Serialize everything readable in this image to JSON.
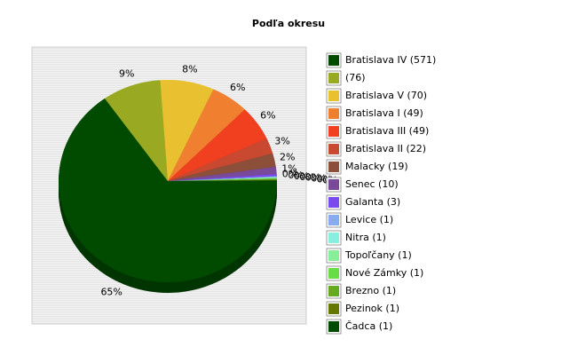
{
  "chart_data": {
    "type": "pie",
    "title": "Podľa okresu",
    "categories": [
      "Bratislava IV (571)",
      " (76)",
      "Bratislava V (70)",
      "Bratislava I (49)",
      "Bratislava III (49)",
      "Bratislava II (22)",
      "Malacky (19)",
      "Senec (10)",
      "Galanta (3)",
      "Levice (1)",
      "Nitra (1)",
      "Topoľčany (1)",
      "Nové Zámky (1)",
      "Brezno (1)",
      "Pezinok (1)",
      "Čadca (1)"
    ],
    "values": [
      65.18,
      8.68,
      7.99,
      5.59,
      5.59,
      2.51,
      2.17,
      1.14,
      0.34,
      0.11,
      0.11,
      0.11,
      0.11,
      0.11,
      0.11,
      0.11
    ],
    "value_labels": [
      "65%",
      "9%",
      "8%",
      "6%",
      "6%",
      "3%",
      "2%",
      "1%",
      "0%",
      "0%",
      "0%",
      "0%",
      "0%",
      "0%",
      "0%",
      "0%"
    ],
    "colors": [
      "#004b00",
      "#99aa22",
      "#e8c030",
      "#f08030",
      "#f04020",
      "#c84830",
      "#8b4f3a",
      "#7a4a9a",
      "#7a4aee",
      "#88aaee",
      "#88eedd",
      "#88ee99",
      "#66dd44",
      "#66aa22",
      "#667700",
      "#004b00"
    ],
    "legend": "right"
  }
}
